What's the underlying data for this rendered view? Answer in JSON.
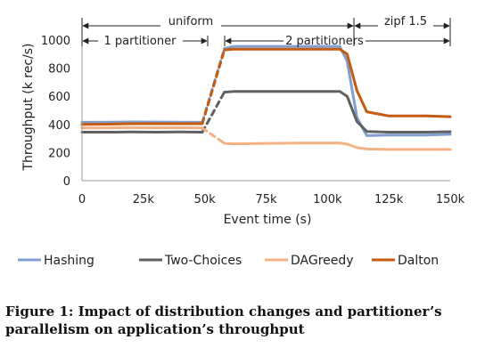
{
  "chart_data": {
    "type": "line",
    "xlabel": "Event time (s)",
    "ylabel": "Throughput (k rec/s)",
    "xlim": [
      0,
      150000
    ],
    "ylim": [
      0,
      1000
    ],
    "xticks": [
      0,
      25000,
      50000,
      75000,
      100000,
      125000,
      150000
    ],
    "xtick_labels": [
      "0",
      "25k",
      "50k",
      "75k",
      "100k",
      "125k",
      "150k"
    ],
    "yticks": [
      0,
      200,
      400,
      600,
      800,
      1000
    ],
    "ytick_labels": [
      "0",
      "200",
      "400",
      "600",
      "800",
      "1000"
    ],
    "grid": false,
    "legend_position": "bottom",
    "annotations": {
      "uniform": "uniform",
      "zipf": "zipf 1.5",
      "one_partitioner": "1 partitioner",
      "two_partitioners": "2 partitioners"
    },
    "series": [
      {
        "name": "Hashing",
        "color": "#7f9fcf",
        "x": [
          0,
          10000,
          20000,
          30000,
          40000,
          49000,
          58000,
          62000,
          75000,
          90000,
          105000,
          108000,
          112000,
          116000,
          125000,
          140000,
          150000
        ],
        "y": [
          415,
          416,
          418,
          417,
          416,
          415,
          940,
          955,
          955,
          955,
          955,
          850,
          450,
          320,
          325,
          325,
          330
        ],
        "dashed_range": [
          49000,
          58000
        ]
      },
      {
        "name": "Two-Choices",
        "color": "#606060",
        "x": [
          0,
          10000,
          20000,
          30000,
          40000,
          49000,
          58000,
          62000,
          75000,
          90000,
          105000,
          108000,
          112000,
          116000,
          125000,
          140000,
          150000
        ],
        "y": [
          345,
          345,
          346,
          345,
          346,
          345,
          630,
          635,
          635,
          635,
          635,
          600,
          420,
          350,
          345,
          345,
          348
        ],
        "dashed_range": [
          49000,
          58000
        ]
      },
      {
        "name": "DAGreedy",
        "color": "#f4b183",
        "x": [
          0,
          10000,
          20000,
          30000,
          40000,
          49000,
          58000,
          62000,
          75000,
          90000,
          105000,
          108000,
          112000,
          116000,
          125000,
          140000,
          150000
        ],
        "y": [
          375,
          376,
          377,
          376,
          377,
          375,
          265,
          262,
          265,
          268,
          268,
          260,
          235,
          225,
          222,
          222,
          222
        ],
        "dashed_range": [
          49000,
          58000
        ]
      },
      {
        "name": "Dalton",
        "color": "#c55a11",
        "x": [
          0,
          10000,
          20000,
          30000,
          40000,
          49000,
          58000,
          62000,
          75000,
          90000,
          105000,
          108000,
          112000,
          116000,
          125000,
          140000,
          150000
        ],
        "y": [
          400,
          402,
          405,
          405,
          405,
          405,
          930,
          935,
          935,
          935,
          935,
          900,
          640,
          490,
          460,
          460,
          455
        ],
        "dashed_range": [
          49000,
          58000
        ]
      }
    ]
  },
  "caption": "Figure 1: Impact of distribution changes and partitioner’s parallelism on application’s throughput"
}
